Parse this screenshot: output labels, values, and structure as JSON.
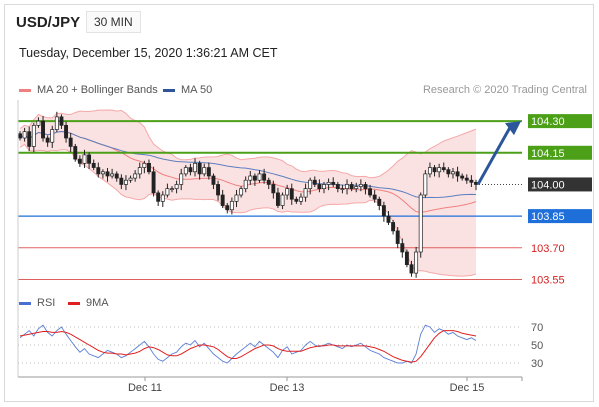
{
  "header": {
    "symbol": "USD/JPY",
    "timeframe": "30 MIN",
    "timestamp": "Tuesday, December 15, 2020 1:36:21 AM CET"
  },
  "legend": {
    "items": [
      {
        "label": "MA 20 + Bollinger Bands",
        "color": "#f08080"
      },
      {
        "label": "MA 50",
        "color": "#2f5597"
      }
    ],
    "credit": "Research © 2020 Trading Central"
  },
  "rsi_legend": {
    "items": [
      {
        "label": "RSI",
        "color": "#4a6fd4"
      },
      {
        "label": "9MA",
        "color": "#e02020"
      }
    ]
  },
  "colors": {
    "resistance": "#4ca018",
    "pivot": "#1e6fd9",
    "support": "#e06060",
    "last": "#333333",
    "arrow": "#2b579a"
  },
  "chart_data": [
    {
      "type": "candlestick",
      "symbol": "USD/JPY",
      "timeframe": "30 MIN",
      "x_ticks": [
        "Dec 11",
        "Dec 13",
        "Dec 15"
      ],
      "y_range": [
        103.5,
        104.4
      ],
      "levels": [
        {
          "value": 104.3,
          "label": "104.30",
          "kind": "resistance"
        },
        {
          "value": 104.15,
          "label": "104.15",
          "kind": "resistance"
        },
        {
          "value": 104.0,
          "label": "104.00",
          "kind": "last"
        },
        {
          "value": 103.85,
          "label": "103.85",
          "kind": "pivot"
        },
        {
          "value": 103.7,
          "label": "103.70",
          "kind": "support"
        },
        {
          "value": 103.55,
          "label": "103.55",
          "kind": "support"
        }
      ],
      "close_approx": [
        104.22,
        104.25,
        104.18,
        104.28,
        104.3,
        104.22,
        104.2,
        104.26,
        104.32,
        104.28,
        104.22,
        104.18,
        104.12,
        104.1,
        104.14,
        104.1,
        104.08,
        104.05,
        104.06,
        104.04,
        104.05,
        104.03,
        104.0,
        104.02,
        104.03,
        104.05,
        104.08,
        104.1,
        104.06,
        103.96,
        103.92,
        103.95,
        103.98,
        103.98,
        104.0,
        104.05,
        104.08,
        104.06,
        104.1,
        104.05,
        104.08,
        104.04,
        104.0,
        103.95,
        103.9,
        103.88,
        103.92,
        103.95,
        103.98,
        104.02,
        104.04,
        104.02,
        104.05,
        104.02,
        104.0,
        103.96,
        103.9,
        103.95,
        103.98,
        103.93,
        103.92,
        103.94,
        103.98,
        104.02,
        104.0,
        103.98,
        104.0,
        104.01,
        104.0,
        103.98,
        103.98,
        104.0,
        103.98,
        103.99,
        104.0,
        103.98,
        103.95,
        103.93,
        103.9,
        103.85,
        103.82,
        103.78,
        103.72,
        103.68,
        103.62,
        103.58,
        103.68,
        103.95,
        104.05,
        104.08,
        104.06,
        104.08,
        104.07,
        104.05,
        104.06,
        104.04,
        104.03,
        104.02,
        104.01,
        104.0
      ],
      "forecast": "up toward 104.30"
    },
    {
      "type": "line",
      "name": "RSI",
      "y_ticks": [
        70,
        50,
        30
      ],
      "series": [
        {
          "name": "RSI",
          "values": [
            58,
            62,
            66,
            60,
            68,
            72,
            64,
            60,
            66,
            70,
            62,
            55,
            48,
            42,
            46,
            40,
            38,
            36,
            40,
            44,
            42,
            40,
            36,
            38,
            42,
            46,
            50,
            54,
            48,
            40,
            34,
            32,
            36,
            40,
            42,
            48,
            52,
            50,
            55,
            48,
            52,
            46,
            40,
            36,
            32,
            30,
            35,
            40,
            44,
            48,
            52,
            48,
            54,
            50,
            46,
            42,
            36,
            44,
            48,
            40,
            42,
            44,
            50,
            54,
            50,
            48,
            50,
            52,
            50,
            48,
            46,
            50,
            48,
            50,
            52,
            48,
            44,
            42,
            40,
            36,
            34,
            32,
            30,
            30,
            32,
            30,
            40,
            62,
            72,
            70,
            64,
            68,
            66,
            62,
            64,
            60,
            58,
            56,
            58,
            55
          ]
        },
        {
          "name": "9MA",
          "values": [
            60,
            61,
            62,
            63,
            64,
            65,
            65,
            64,
            64,
            65,
            64,
            62,
            59,
            56,
            53,
            50,
            47,
            44,
            42,
            41,
            41,
            40,
            40,
            39,
            40,
            41,
            43,
            46,
            48,
            47,
            45,
            42,
            39,
            38,
            38,
            40,
            43,
            46,
            48,
            50,
            50,
            49,
            48,
            45,
            41,
            37,
            35,
            35,
            37,
            40,
            43,
            46,
            48,
            50,
            50,
            49,
            46,
            44,
            43,
            43,
            43,
            43,
            45,
            47,
            48,
            49,
            49,
            50,
            50,
            49,
            49,
            49,
            49,
            49,
            49,
            49,
            48,
            47,
            45,
            43,
            40,
            37,
            35,
            33,
            32,
            31,
            32,
            37,
            44,
            51,
            58,
            63,
            66,
            66,
            66,
            65,
            63,
            62,
            61,
            60
          ]
        }
      ]
    }
  ]
}
